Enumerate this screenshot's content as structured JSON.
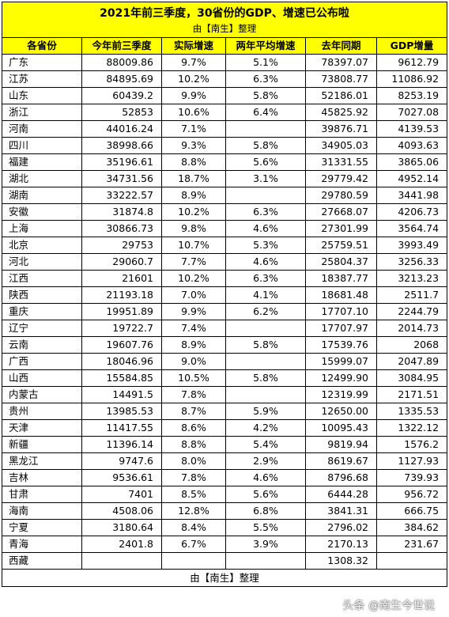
{
  "title": "2021年前三季度，30省份的GDP、增速已公布啦",
  "subtitle": "由【南生】整理",
  "columns": [
    "各省份",
    "今年前三季度",
    "实际增速",
    "两年平均增速",
    "去年同期",
    "GDP增量"
  ],
  "rows": [
    [
      "广东",
      "88009.86",
      "9.7%",
      "5.1%",
      "78397.07",
      "9612.79"
    ],
    [
      "江苏",
      "84895.69",
      "10.2%",
      "6.3%",
      "73808.77",
      "11086.92"
    ],
    [
      "山东",
      "60439.2",
      "9.9%",
      "5.8%",
      "52186.01",
      "8253.19"
    ],
    [
      "浙江",
      "52853",
      "10.6%",
      "6.4%",
      "45825.92",
      "7027.08"
    ],
    [
      "河南",
      "44016.24",
      "7.1%",
      "",
      "39876.71",
      "4139.53"
    ],
    [
      "四川",
      "38998.66",
      "9.3%",
      "5.8%",
      "34905.03",
      "4093.63"
    ],
    [
      "福建",
      "35196.61",
      "8.8%",
      "5.6%",
      "31331.55",
      "3865.06"
    ],
    [
      "湖北",
      "34731.56",
      "18.7%",
      "3.1%",
      "29779.42",
      "4952.14"
    ],
    [
      "湖南",
      "33222.57",
      "8.9%",
      "",
      "29780.59",
      "3441.98"
    ],
    [
      "安徽",
      "31874.8",
      "10.2%",
      "6.3%",
      "27668.07",
      "4206.73"
    ],
    [
      "上海",
      "30866.73",
      "9.8%",
      "4.6%",
      "27301.99",
      "3564.74"
    ],
    [
      "北京",
      "29753",
      "10.7%",
      "5.3%",
      "25759.51",
      "3993.49"
    ],
    [
      "河北",
      "29060.7",
      "7.7%",
      "4.6%",
      "25804.37",
      "3256.33"
    ],
    [
      "江西",
      "21601",
      "10.2%",
      "6.3%",
      "18387.77",
      "3213.23"
    ],
    [
      "陕西",
      "21193.18",
      "7.0%",
      "4.1%",
      "18681.48",
      "2511.7"
    ],
    [
      "重庆",
      "19951.89",
      "9.9%",
      "6.2%",
      "17707.10",
      "2244.79"
    ],
    [
      "辽宁",
      "19722.7",
      "7.4%",
      "",
      "17707.97",
      "2014.73"
    ],
    [
      "云南",
      "19607.76",
      "8.9%",
      "5.8%",
      "17539.76",
      "2068"
    ],
    [
      "广西",
      "18046.96",
      "9.0%",
      "",
      "15999.07",
      "2047.89"
    ],
    [
      "山西",
      "15584.85",
      "10.5%",
      "5.8%",
      "12499.90",
      "3084.95"
    ],
    [
      "内蒙古",
      "14491.5",
      "7.8%",
      "",
      "12319.99",
      "2171.51"
    ],
    [
      "贵州",
      "13985.53",
      "8.7%",
      "5.9%",
      "12650.00",
      "1335.53"
    ],
    [
      "天津",
      "11417.55",
      "8.6%",
      "4.2%",
      "10095.43",
      "1322.12"
    ],
    [
      "新疆",
      "11396.14",
      "8.8%",
      "5.4%",
      "9819.94",
      "1576.2"
    ],
    [
      "黑龙江",
      "9747.6",
      "8.0%",
      "2.9%",
      "8619.67",
      "1127.93"
    ],
    [
      "吉林",
      "9536.61",
      "7.8%",
      "4.6%",
      "8796.68",
      "739.93"
    ],
    [
      "甘肃",
      "7401",
      "8.5%",
      "5.6%",
      "6444.28",
      "956.72"
    ],
    [
      "海南",
      "4508.06",
      "12.8%",
      "6.8%",
      "3841.31",
      "666.75"
    ],
    [
      "宁夏",
      "3180.64",
      "8.4%",
      "5.5%",
      "2796.02",
      "384.62"
    ],
    [
      "青海",
      "2401.8",
      "6.7%",
      "3.9%",
      "2170.13",
      "231.67"
    ],
    [
      "西藏",
      "",
      "",
      "",
      "1308.32",
      ""
    ]
  ],
  "footer": "由【南生】整理",
  "watermark": "头条 @南生今世说"
}
